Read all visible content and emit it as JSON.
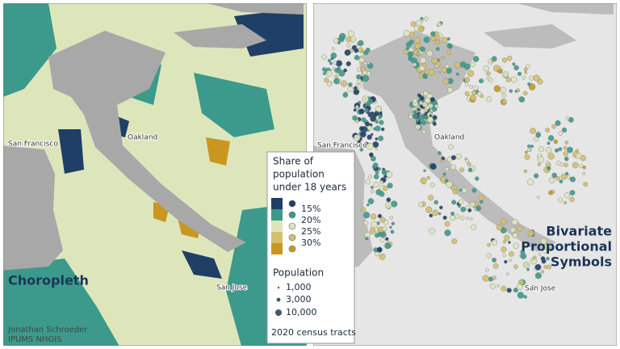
{
  "left_panel": {
    "title": "Choropleth",
    "credits": [
      "Jonathan Schroeder",
      "IPUMS NHGIS"
    ],
    "places": [
      "San Francisco",
      "Oakland",
      "San Jose"
    ]
  },
  "right_panel": {
    "title": [
      "Bivariate",
      "Proportional",
      "Symbols"
    ],
    "places": [
      "San Francisco",
      "Oakland",
      "San Jose"
    ]
  },
  "legend": {
    "share_title": [
      "Share of",
      "population",
      "under 18 years"
    ],
    "share_classes": [
      "15%",
      "20%",
      "25%",
      "30%"
    ],
    "population_title": "Population",
    "population_sizes": [
      "1,000",
      "3,000",
      "10,000"
    ],
    "note": "2020 census tracts"
  }
}
